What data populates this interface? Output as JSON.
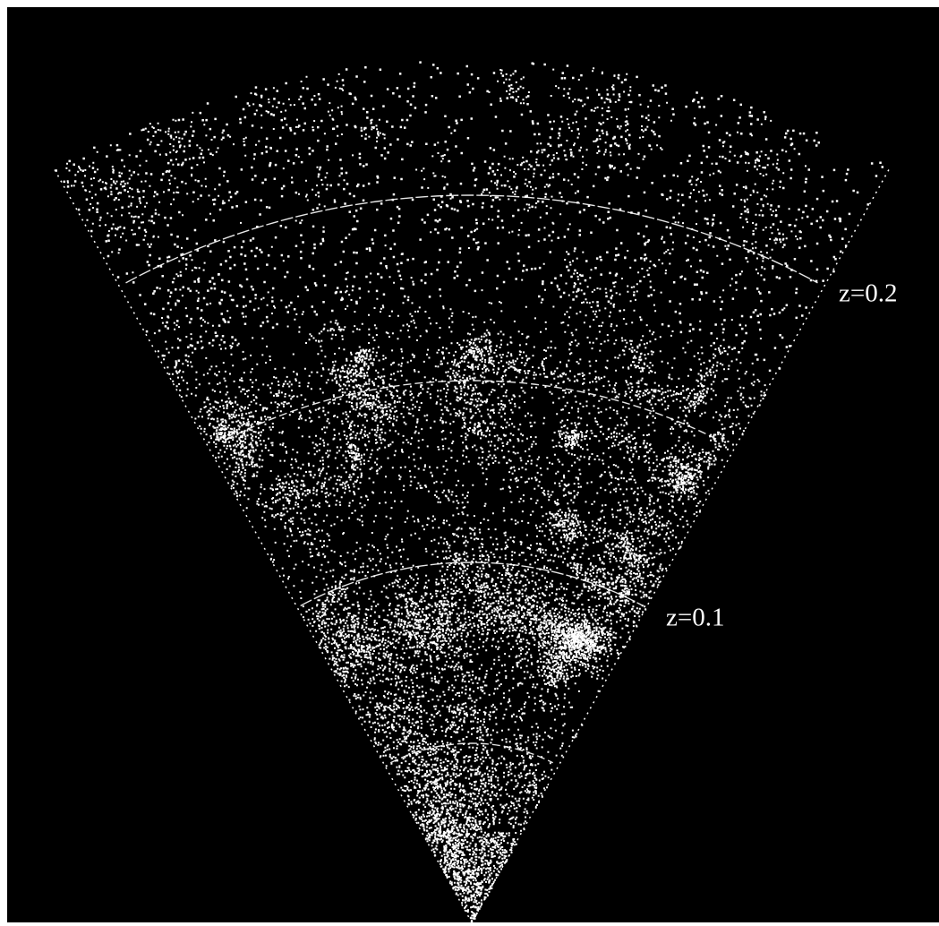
{
  "labels": [
    "z=0.2",
    "z=0.1"
  ]
}
